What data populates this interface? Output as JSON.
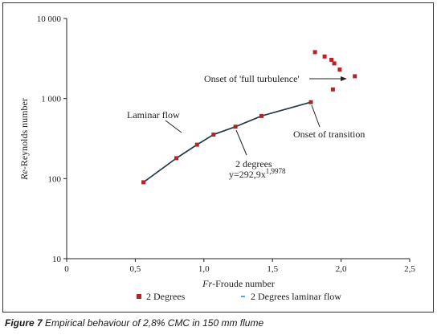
{
  "caption": {
    "label": "Figure 7",
    "text": "Empirical behaviour of 2,8% CMC in 150 mm flume"
  },
  "chart_data": {
    "type": "scatter",
    "x_scale": "linear",
    "y_scale": "log",
    "xlim": [
      0,
      2.5
    ],
    "ylim": [
      10,
      10000
    ],
    "x_ticks": [
      {
        "value": 0,
        "label": "0"
      },
      {
        "value": 0.5,
        "label": "0,5"
      },
      {
        "value": 1.0,
        "label": "1,0"
      },
      {
        "value": 1.5,
        "label": "1,5"
      },
      {
        "value": 2.0,
        "label": "2,0"
      },
      {
        "value": 2.5,
        "label": "2,5"
      }
    ],
    "y_ticks": [
      {
        "value": 10,
        "label": "10"
      },
      {
        "value": 100,
        "label": "100"
      },
      {
        "value": 1000,
        "label": "1 000"
      },
      {
        "value": 10000,
        "label": "10 000"
      }
    ],
    "xlabel": {
      "italic": "Fr",
      "rest": "-Froude number"
    },
    "ylabel": {
      "italic": "Re",
      "rest": "-Reynolds number"
    },
    "grid": false,
    "legend_position": "bottom",
    "series": [
      {
        "name": "2 Degrees",
        "kind": "markers",
        "color": "#b5232a",
        "points": [
          {
            "x": 0.56,
            "y": 90
          },
          {
            "x": 0.8,
            "y": 180
          },
          {
            "x": 0.95,
            "y": 265
          },
          {
            "x": 1.07,
            "y": 355
          },
          {
            "x": 1.23,
            "y": 445
          },
          {
            "x": 1.42,
            "y": 605
          },
          {
            "x": 1.78,
            "y": 900
          },
          {
            "x": 1.81,
            "y": 3800
          },
          {
            "x": 1.88,
            "y": 3350
          },
          {
            "x": 1.93,
            "y": 3050
          },
          {
            "x": 1.95,
            "y": 2750
          },
          {
            "x": 1.99,
            "y": 2300
          },
          {
            "x": 2.1,
            "y": 1900
          },
          {
            "x": 1.94,
            "y": 1300
          }
        ]
      },
      {
        "name": "2 Degrees laminar flow",
        "kind": "line",
        "color": "#1e8fd0",
        "points": [
          {
            "x": 0.56,
            "y": 90
          },
          {
            "x": 0.8,
            "y": 180
          },
          {
            "x": 0.95,
            "y": 265
          },
          {
            "x": 1.07,
            "y": 355
          },
          {
            "x": 1.23,
            "y": 445
          },
          {
            "x": 1.42,
            "y": 605
          },
          {
            "x": 1.78,
            "y": 900
          }
        ]
      }
    ],
    "annotations": {
      "full_turbulence": "Onset of 'full turbulence'",
      "laminar": "Laminar flow",
      "transition": "Onset of transition",
      "fit_name": "2 degrees",
      "fit_eq_base": "y=292,9x",
      "fit_eq_exp": "1,9978"
    }
  }
}
